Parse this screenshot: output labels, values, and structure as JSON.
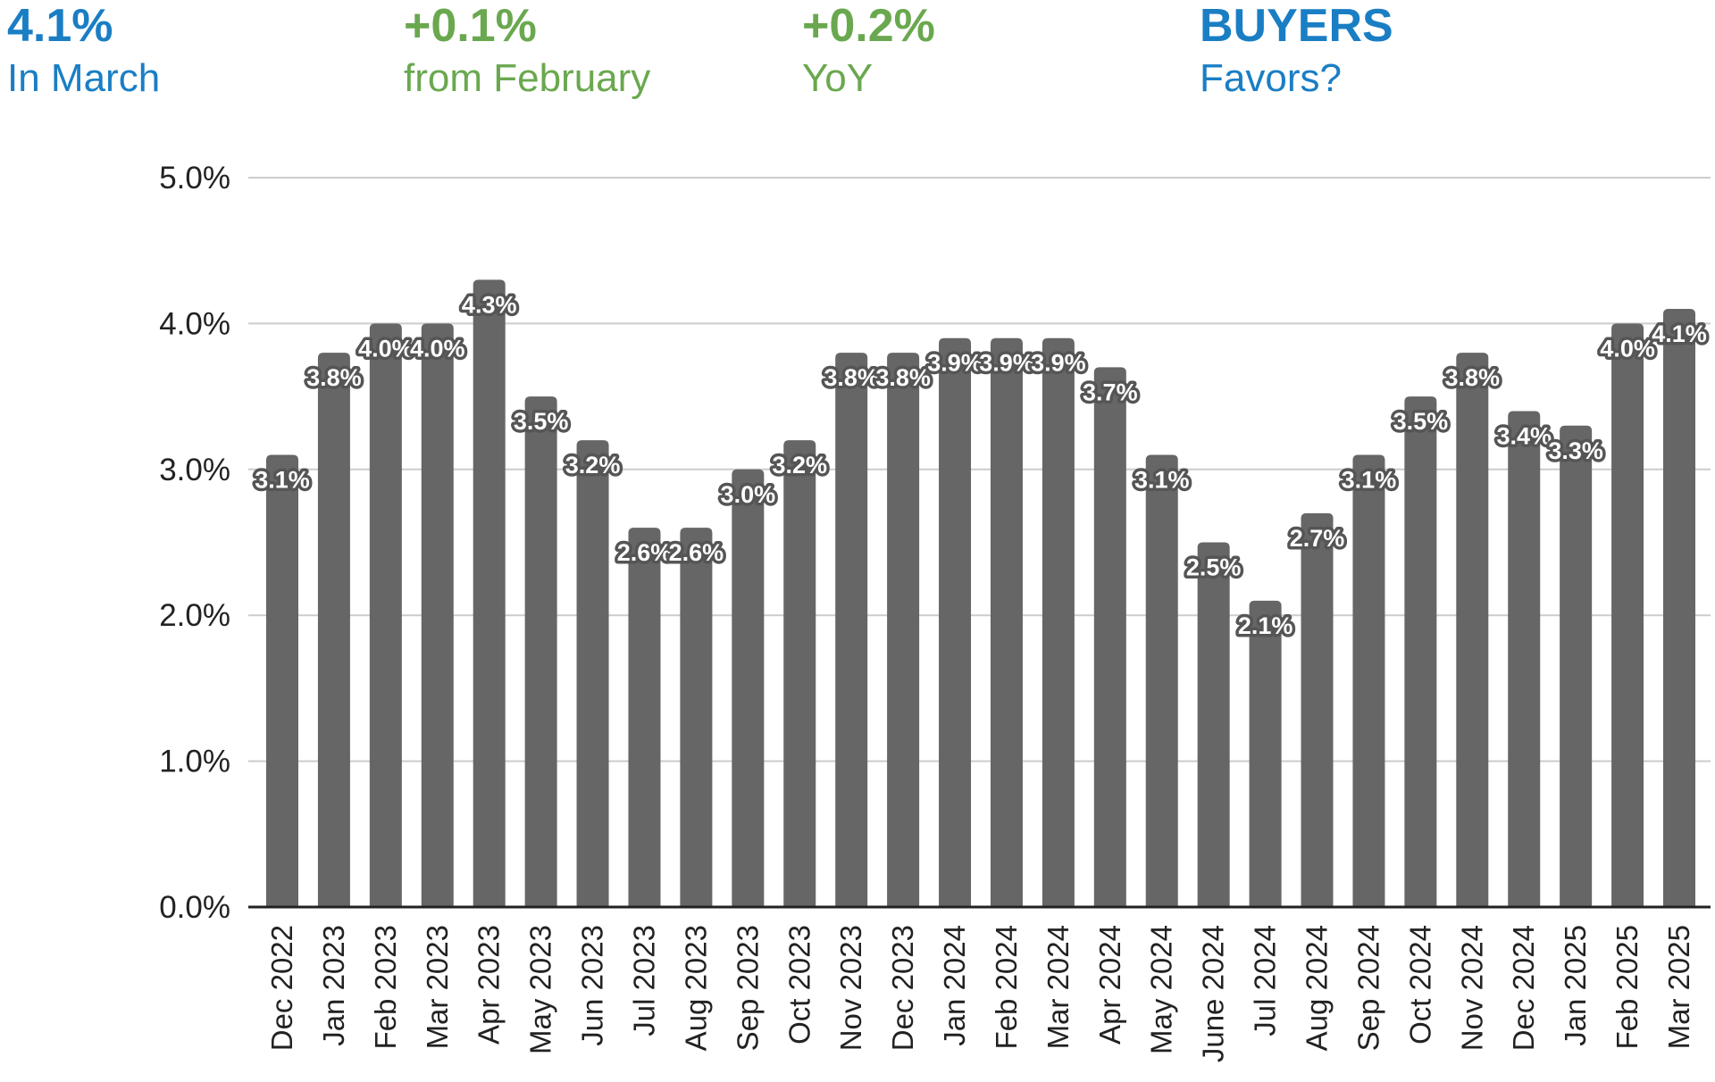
{
  "stats": [
    {
      "value": "4.1%",
      "label": "In March",
      "color": "#1a7ec4"
    },
    {
      "value": "+0.1%",
      "label": "from February",
      "color": "#6aa84f"
    },
    {
      "value": "+0.2%",
      "label": "YoY",
      "color": "#6aa84f"
    },
    {
      "value": "BUYERS",
      "label": "Favors?",
      "color": "#1a7ec4"
    }
  ],
  "chart_data": {
    "type": "bar",
    "title": "",
    "xlabel": "",
    "ylabel": "",
    "ylim": [
      0,
      5
    ],
    "y_ticks": [
      "0.0%",
      "1.0%",
      "2.0%",
      "3.0%",
      "4.0%",
      "5.0%"
    ],
    "grid": true,
    "bar_color": "#666666",
    "categories": [
      "Dec 2022",
      "Jan 2023",
      "Feb 2023",
      "Mar 2023",
      "Apr 2023",
      "May 2023",
      "Jun 2023",
      "Jul 2023",
      "Aug 2023",
      "Sep 2023",
      "Oct 2023",
      "Nov 2023",
      "Dec 2023",
      "Jan 2024",
      "Feb 2024",
      "Mar 2024",
      "Apr 2024",
      "May 2024",
      "June 2024",
      "Jul 2024",
      "Aug 2024",
      "Sep 2024",
      "Oct 2024",
      "Nov 2024",
      "Dec 2024",
      "Jan 2025",
      "Feb 2025",
      "Mar 2025"
    ],
    "values": [
      3.1,
      3.8,
      4.0,
      4.0,
      4.3,
      3.5,
      3.2,
      2.6,
      2.6,
      3.0,
      3.2,
      3.8,
      3.8,
      3.9,
      3.9,
      3.9,
      3.7,
      3.1,
      2.5,
      2.1,
      2.7,
      3.1,
      3.5,
      3.8,
      3.4,
      3.3,
      4.0,
      4.1
    ],
    "data_labels": [
      "3.1%",
      "3.8%",
      "4.0%",
      "4.0%",
      "4.3%",
      "3.5%",
      "3.2%",
      "2.6%",
      "2.6%",
      "3.0%",
      "3.2%",
      "3.8%",
      "3.8%",
      "3.9%",
      "3.9%",
      "3.9%",
      "3.7%",
      "3.1%",
      "2.5%",
      "2.1%",
      "2.7%",
      "3.1%",
      "3.5%",
      "3.8%",
      "3.4%",
      "3.3%",
      "4.0%",
      "4.1%"
    ]
  }
}
